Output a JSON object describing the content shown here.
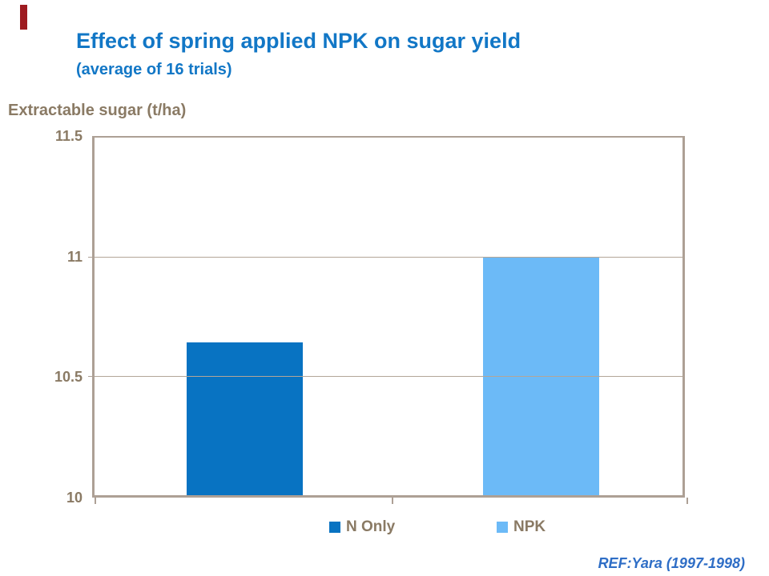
{
  "accent": {
    "bar_color": "#9E1B20"
  },
  "title": {
    "text": "Effect of spring applied NPK on sugar yield",
    "subtitle": "(average of 16 trials)",
    "color": "#1277C6"
  },
  "axis": {
    "y_title": "Extractable sugar (t/ha)",
    "text_color": "#8A7A64",
    "line_color": "#ADA095",
    "gridline_color": "#B3A698"
  },
  "legend": {
    "items": [
      {
        "label": "N Only",
        "color": "#0873C2"
      },
      {
        "label": "NPK",
        "color": "#6CBAF7"
      }
    ]
  },
  "footer": {
    "ref": "REF:Yara (1997-1998)",
    "color": "#2F6EC6"
  },
  "chart_data": {
    "type": "bar",
    "categories": [
      "N Only",
      "NPK"
    ],
    "values": [
      10.64,
      11.0
    ],
    "series_colors": [
      "#0873C2",
      "#6CBAF7"
    ],
    "title": "Effect of spring applied NPK on sugar yield",
    "subtitle": "(average of 16 trials)",
    "xlabel": "",
    "ylabel": "Extractable sugar (t/ha)",
    "ylim": [
      10,
      11.5
    ],
    "yticks": [
      11.5,
      11,
      10.5,
      10
    ],
    "grid": true,
    "legend_position": "bottom",
    "source_note": "REF:Yara (1997-1998)"
  }
}
